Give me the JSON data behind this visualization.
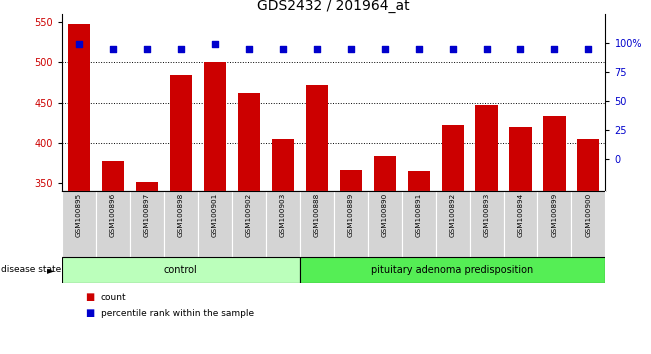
{
  "title": "GDS2432 / 201964_at",
  "categories": [
    "GSM100895",
    "GSM100896",
    "GSM100897",
    "GSM100898",
    "GSM100901",
    "GSM100902",
    "GSM100903",
    "GSM100888",
    "GSM100889",
    "GSM100890",
    "GSM100891",
    "GSM100892",
    "GSM100893",
    "GSM100894",
    "GSM100899",
    "GSM100900"
  ],
  "bar_values": [
    548,
    378,
    352,
    484,
    501,
    462,
    405,
    472,
    366,
    384,
    365,
    422,
    447,
    420,
    433,
    405
  ],
  "percentile_values": [
    99,
    95,
    95,
    95,
    99,
    95,
    95,
    95,
    95,
    95,
    95,
    95,
    95,
    95,
    95,
    95
  ],
  "bar_color": "#cc0000",
  "dot_color": "#0000cc",
  "ylim_left": [
    340,
    560
  ],
  "ylim_right": [
    -27.5,
    125
  ],
  "yticks_left": [
    350,
    400,
    450,
    500,
    550
  ],
  "yticks_right": [
    0,
    25,
    50,
    75,
    100
  ],
  "ytick_labels_right": [
    "0",
    "25",
    "50",
    "75",
    "100%"
  ],
  "grid_values": [
    400,
    450,
    500
  ],
  "control_label": "control",
  "disease_label": "pituitary adenoma predisposition",
  "control_count": 7,
  "disease_count": 9,
  "disease_state_label": "disease state",
  "legend_count_label": "count",
  "legend_percentile_label": "percentile rank within the sample",
  "bar_width": 0.65,
  "cell_bg": "#d4d4d4",
  "control_bg": "#bbffbb",
  "disease_bg": "#55ee55",
  "title_fontsize": 10,
  "tick_fontsize": 7,
  "label_fontsize": 7
}
